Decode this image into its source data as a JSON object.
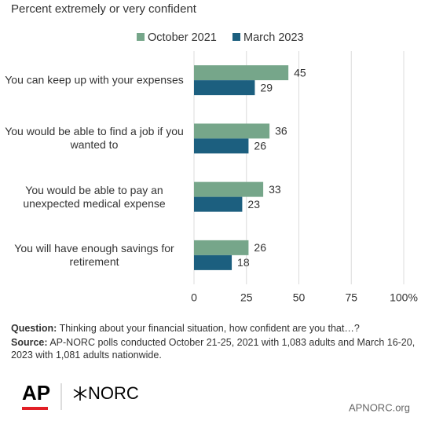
{
  "chart_data": {
    "type": "bar",
    "orientation": "horizontal",
    "subtitle": "Percent extremely or very confident",
    "categories": [
      "You can keep up with your expenses",
      "You would be able to find a job if you wanted to",
      "You would be able to pay an unexpected medical expense",
      "You will have enough savings for retirement"
    ],
    "series": [
      {
        "name": "October 2021",
        "color": "#76a68a",
        "values": [
          45,
          36,
          33,
          26
        ]
      },
      {
        "name": "March 2023",
        "color": "#1c5f7f",
        "values": [
          29,
          26,
          23,
          18
        ]
      }
    ],
    "xlim": [
      0,
      100
    ],
    "xticks": [
      0,
      25,
      50,
      75,
      {
        "value": 100,
        "label": "100%"
      }
    ],
    "grid": true,
    "legend": "top"
  },
  "notes": {
    "question": {
      "label": "Question:",
      "text": "Thinking about your financial situation, how confident are you that…?"
    },
    "source": {
      "label": "Source:",
      "text": "AP-NORC polls conducted October 21-25, 2021 with 1,083 adults and March 16-20, 2023 with 1,081 adults nationwide."
    }
  },
  "footer": {
    "ap": "AP",
    "norc": "NORC",
    "site": "APNORC.org"
  }
}
